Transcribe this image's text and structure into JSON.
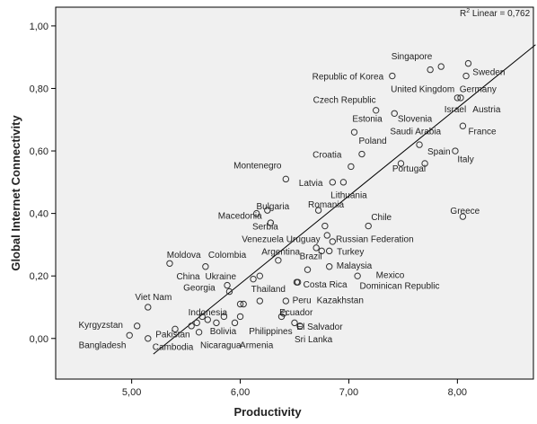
{
  "chart_data": {
    "type": "scatter",
    "xlabel": "Productivity",
    "ylabel": "Global Internet Connectivity",
    "xlim": [
      4.3,
      8.7
    ],
    "ylim": [
      -0.13,
      1.06
    ],
    "xticks": [
      5.0,
      6.0,
      7.0,
      8.0
    ],
    "xtick_labels": [
      "5,00",
      "6,00",
      "7,00",
      "8,00"
    ],
    "yticks": [
      0.0,
      0.2,
      0.4,
      0.6,
      0.8,
      1.0
    ],
    "ytick_labels": [
      "0,00",
      "0,20",
      "0,40",
      "0,60",
      "0,80",
      "1,00"
    ],
    "r2_label": {
      "prefix": "R",
      "sup": "2",
      "text": " Linear = 0,762"
    },
    "fit_line": {
      "x": [
        5.2,
        8.72
      ],
      "y": [
        -0.05,
        0.94
      ]
    },
    "plot_bg": "#f0f0f0",
    "marker_color": "#333333",
    "points": [
      {
        "x": 4.98,
        "y": 0.01
      },
      {
        "x": 5.05,
        "y": 0.04
      },
      {
        "x": 5.15,
        "y": 0.1
      },
      {
        "x": 5.15,
        "y": 0.0
      },
      {
        "x": 5.35,
        "y": 0.24
      },
      {
        "x": 5.4,
        "y": 0.03
      },
      {
        "x": 5.55,
        "y": 0.04
      },
      {
        "x": 5.6,
        "y": 0.05
      },
      {
        "x": 5.62,
        "y": 0.02
      },
      {
        "x": 5.65,
        "y": 0.07
      },
      {
        "x": 5.68,
        "y": 0.23
      },
      {
        "x": 5.7,
        "y": 0.06
      },
      {
        "x": 5.78,
        "y": 0.05
      },
      {
        "x": 5.85,
        "y": 0.07
      },
      {
        "x": 5.88,
        "y": 0.17
      },
      {
        "x": 5.9,
        "y": 0.15
      },
      {
        "x": 5.95,
        "y": 0.05
      },
      {
        "x": 6.0,
        "y": 0.07
      },
      {
        "x": 6.0,
        "y": 0.11
      },
      {
        "x": 6.03,
        "y": 0.11
      },
      {
        "x": 6.12,
        "y": 0.19
      },
      {
        "x": 6.18,
        "y": 0.2
      },
      {
        "x": 6.18,
        "y": 0.12
      },
      {
        "x": 6.15,
        "y": 0.4
      },
      {
        "x": 6.25,
        "y": 0.41
      },
      {
        "x": 6.28,
        "y": 0.37
      },
      {
        "x": 6.35,
        "y": 0.25
      },
      {
        "x": 6.38,
        "y": 0.07
      },
      {
        "x": 6.4,
        "y": 0.08
      },
      {
        "x": 6.42,
        "y": 0.51
      },
      {
        "x": 6.42,
        "y": 0.12
      },
      {
        "x": 6.5,
        "y": 0.05
      },
      {
        "x": 6.52,
        "y": 0.18
      },
      {
        "x": 6.53,
        "y": 0.18
      },
      {
        "x": 6.55,
        "y": 0.04
      },
      {
        "x": 6.62,
        "y": 0.22
      },
      {
        "x": 6.7,
        "y": 0.29
      },
      {
        "x": 6.72,
        "y": 0.41
      },
      {
        "x": 6.75,
        "y": 0.28
      },
      {
        "x": 6.78,
        "y": 0.36
      },
      {
        "x": 6.8,
        "y": 0.33
      },
      {
        "x": 6.82,
        "y": 0.28
      },
      {
        "x": 6.82,
        "y": 0.23
      },
      {
        "x": 6.85,
        "y": 0.31
      },
      {
        "x": 6.85,
        "y": 0.5
      },
      {
        "x": 6.95,
        "y": 0.5
      },
      {
        "x": 7.02,
        "y": 0.55
      },
      {
        "x": 7.05,
        "y": 0.66
      },
      {
        "x": 7.08,
        "y": 0.2
      },
      {
        "x": 7.12,
        "y": 0.59
      },
      {
        "x": 7.18,
        "y": 0.36
      },
      {
        "x": 7.25,
        "y": 0.73
      },
      {
        "x": 7.4,
        "y": 0.84
      },
      {
        "x": 7.42,
        "y": 0.72
      },
      {
        "x": 7.48,
        "y": 0.56
      },
      {
        "x": 7.65,
        "y": 0.62
      },
      {
        "x": 7.7,
        "y": 0.56
      },
      {
        "x": 7.75,
        "y": 0.86
      },
      {
        "x": 7.85,
        "y": 0.87
      },
      {
        "x": 7.98,
        "y": 0.6
      },
      {
        "x": 8.0,
        "y": 0.77
      },
      {
        "x": 8.03,
        "y": 0.77
      },
      {
        "x": 8.05,
        "y": 0.39
      },
      {
        "x": 8.05,
        "y": 0.68
      },
      {
        "x": 8.08,
        "y": 0.84
      },
      {
        "x": 8.1,
        "y": 0.88
      }
    ],
    "labels": [
      {
        "text": "Singapore",
        "x": 7.58,
        "y": 0.905,
        "anchor": "middle"
      },
      {
        "text": "Sweden",
        "x": 8.14,
        "y": 0.855,
        "anchor": "start"
      },
      {
        "text": "Republic of Korea",
        "x": 7.32,
        "y": 0.84,
        "anchor": "end"
      },
      {
        "text": "United Kingdom",
        "x": 7.68,
        "y": 0.8,
        "anchor": "middle"
      },
      {
        "text": "Germany",
        "x": 8.02,
        "y": 0.8,
        "anchor": "start"
      },
      {
        "text": "Czech Republic",
        "x": 6.96,
        "y": 0.765,
        "anchor": "middle"
      },
      {
        "text": "Israel",
        "x": 7.98,
        "y": 0.735,
        "anchor": "middle"
      },
      {
        "text": "Austria",
        "x": 8.14,
        "y": 0.735,
        "anchor": "start"
      },
      {
        "text": "Estonia",
        "x": 7.17,
        "y": 0.705,
        "anchor": "middle"
      },
      {
        "text": "Slovenia",
        "x": 7.45,
        "y": 0.705,
        "anchor": "start"
      },
      {
        "text": "Saudi Arabia",
        "x": 7.38,
        "y": 0.665,
        "anchor": "start"
      },
      {
        "text": "France",
        "x": 8.1,
        "y": 0.665,
        "anchor": "start"
      },
      {
        "text": "Poland",
        "x": 7.22,
        "y": 0.635,
        "anchor": "middle"
      },
      {
        "text": "Spain",
        "x": 7.83,
        "y": 0.6,
        "anchor": "middle"
      },
      {
        "text": "Croatia",
        "x": 6.8,
        "y": 0.59,
        "anchor": "middle"
      },
      {
        "text": "Italy",
        "x": 8.0,
        "y": 0.575,
        "anchor": "start"
      },
      {
        "text": "Montenegro",
        "x": 6.38,
        "y": 0.555,
        "anchor": "end"
      },
      {
        "text": "Portugal",
        "x": 7.4,
        "y": 0.545,
        "anchor": "start"
      },
      {
        "text": "Latvia",
        "x": 6.65,
        "y": 0.5,
        "anchor": "middle"
      },
      {
        "text": "Lithuania",
        "x": 7.0,
        "y": 0.46,
        "anchor": "middle"
      },
      {
        "text": "Bulgaria",
        "x": 6.3,
        "y": 0.425,
        "anchor": "middle"
      },
      {
        "text": "Romania",
        "x": 6.79,
        "y": 0.43,
        "anchor": "middle"
      },
      {
        "text": "Greece",
        "x": 8.07,
        "y": 0.41,
        "anchor": "middle"
      },
      {
        "text": "Macedonia",
        "x": 6.2,
        "y": 0.395,
        "anchor": "end"
      },
      {
        "text": "Chile",
        "x": 7.3,
        "y": 0.39,
        "anchor": "middle"
      },
      {
        "text": "Serbia",
        "x": 6.35,
        "y": 0.36,
        "anchor": "end"
      },
      {
        "text": "Venezuela",
        "x": 6.4,
        "y": 0.32,
        "anchor": "end"
      },
      {
        "text": "Uruguay",
        "x": 6.58,
        "y": 0.32,
        "anchor": "middle"
      },
      {
        "text": "Russian Federation",
        "x": 6.88,
        "y": 0.32,
        "anchor": "start"
      },
      {
        "text": "Argentina",
        "x": 6.55,
        "y": 0.28,
        "anchor": "end"
      },
      {
        "text": "Turkey",
        "x": 6.89,
        "y": 0.28,
        "anchor": "start"
      },
      {
        "text": "Moldova",
        "x": 5.48,
        "y": 0.27,
        "anchor": "middle"
      },
      {
        "text": "Colombia",
        "x": 5.88,
        "y": 0.27,
        "anchor": "middle"
      },
      {
        "text": "Brazil",
        "x": 6.65,
        "y": 0.265,
        "anchor": "middle"
      },
      {
        "text": "Malaysia",
        "x": 7.05,
        "y": 0.235,
        "anchor": "middle"
      },
      {
        "text": "China",
        "x": 5.52,
        "y": 0.2,
        "anchor": "middle"
      },
      {
        "text": "Ukraine",
        "x": 5.82,
        "y": 0.2,
        "anchor": "middle"
      },
      {
        "text": "Mexico",
        "x": 7.25,
        "y": 0.205,
        "anchor": "start"
      },
      {
        "text": "Costa Rica",
        "x": 6.58,
        "y": 0.175,
        "anchor": "start"
      },
      {
        "text": "Dominican Republic",
        "x": 7.1,
        "y": 0.17,
        "anchor": "start"
      },
      {
        "text": "Georgia",
        "x": 5.77,
        "y": 0.165,
        "anchor": "end"
      },
      {
        "text": "Thailand",
        "x": 6.1,
        "y": 0.16,
        "anchor": "start"
      },
      {
        "text": "Viet Nam",
        "x": 5.2,
        "y": 0.135,
        "anchor": "middle"
      },
      {
        "text": "Peru",
        "x": 6.48,
        "y": 0.125,
        "anchor": "start"
      },
      {
        "text": "Kazakhstan",
        "x": 6.92,
        "y": 0.125,
        "anchor": "middle"
      },
      {
        "text": "Indonesia",
        "x": 5.88,
        "y": 0.085,
        "anchor": "end"
      },
      {
        "text": "Ecuador",
        "x": 6.36,
        "y": 0.085,
        "anchor": "start"
      },
      {
        "text": "Kyrgyzstan",
        "x": 4.92,
        "y": 0.045,
        "anchor": "end"
      },
      {
        "text": "El Salvador",
        "x": 6.52,
        "y": 0.04,
        "anchor": "start"
      },
      {
        "text": "Bolivia",
        "x": 5.72,
        "y": 0.025,
        "anchor": "start"
      },
      {
        "text": "Philippines",
        "x": 6.28,
        "y": 0.025,
        "anchor": "middle"
      },
      {
        "text": "Pakistan",
        "x": 5.22,
        "y": 0.015,
        "anchor": "start"
      },
      {
        "text": "Sri Lanka",
        "x": 6.5,
        "y": 0.0,
        "anchor": "start"
      },
      {
        "text": "Bangladesh",
        "x": 4.73,
        "y": -0.02,
        "anchor": "middle"
      },
      {
        "text": "Cambodia",
        "x": 5.38,
        "y": -0.025,
        "anchor": "middle"
      },
      {
        "text": "Nicaragua",
        "x": 5.82,
        "y": -0.02,
        "anchor": "middle"
      },
      {
        "text": "Armenia",
        "x": 6.15,
        "y": -0.02,
        "anchor": "middle"
      }
    ]
  }
}
